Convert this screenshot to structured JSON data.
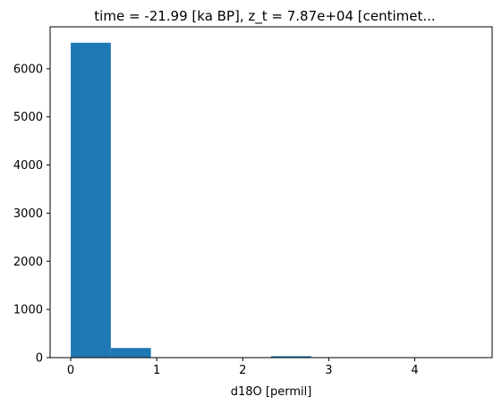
{
  "chart_data": {
    "type": "bar",
    "title": "time = -21.99 [ka BP], z_t = 7.87e+04 [centimet...",
    "xlabel": "d18O [permil]",
    "ylabel": "",
    "xlim": [
      -0.24,
      4.9
    ],
    "ylim": [
      0,
      6870
    ],
    "x_ticks": [
      0,
      1,
      2,
      3,
      4
    ],
    "y_ticks": [
      0,
      1000,
      2000,
      3000,
      4000,
      5000,
      6000
    ],
    "bins": [
      {
        "x0": 0.0,
        "x1": 0.466,
        "count": 6540
      },
      {
        "x0": 0.466,
        "x1": 0.932,
        "count": 200
      },
      {
        "x0": 0.932,
        "x1": 1.398,
        "count": 0
      },
      {
        "x0": 1.398,
        "x1": 1.864,
        "count": 0
      },
      {
        "x0": 1.864,
        "x1": 2.33,
        "count": 0
      },
      {
        "x0": 2.33,
        "x1": 2.796,
        "count": 30
      },
      {
        "x0": 2.796,
        "x1": 3.262,
        "count": 0
      },
      {
        "x0": 3.262,
        "x1": 3.728,
        "count": 0
      },
      {
        "x0": 3.728,
        "x1": 4.194,
        "count": 0
      },
      {
        "x0": 4.194,
        "x1": 4.66,
        "count": 0
      }
    ],
    "bar_color": "#1f77b4",
    "grid": false
  }
}
